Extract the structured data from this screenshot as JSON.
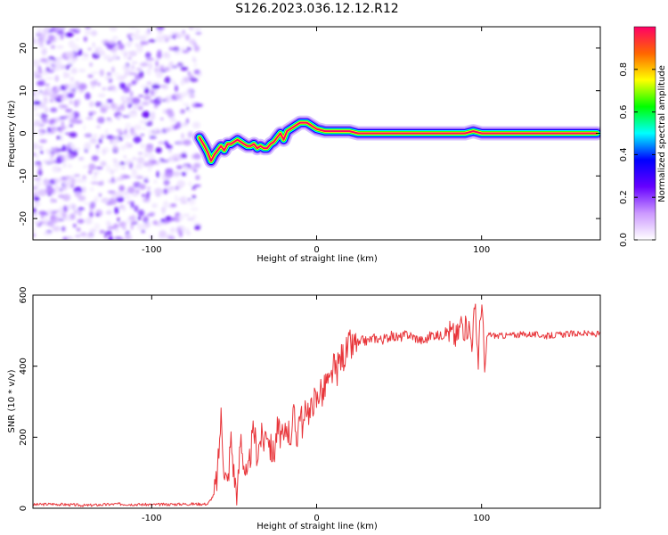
{
  "title": "S126.2023.036.12.12.R12",
  "chart_data": [
    {
      "type": "heatmap",
      "xlabel": "Height of straight line (km)",
      "ylabel": "Frequency (Hz)",
      "xlim": [
        -172,
        172
      ],
      "ylim": [
        -25,
        25
      ],
      "xticks": [
        -100,
        0,
        100
      ],
      "yticks": [
        -20,
        -10,
        0,
        10,
        20
      ],
      "noise_region_x": [
        -172,
        -71
      ],
      "ridge": {
        "x": [
          -71,
          -68,
          -66,
          -64,
          -62,
          -60,
          -58,
          -56,
          -54,
          -52,
          -50,
          -48,
          -46,
          -44,
          -42,
          -40,
          -38,
          -36,
          -34,
          -32,
          -30,
          -28,
          -26,
          -24,
          -22,
          -20,
          -18,
          -16,
          -14,
          -12,
          -10,
          -8,
          -6,
          -4,
          -2,
          0,
          5,
          10,
          15,
          20,
          25,
          30,
          40,
          50,
          60,
          70,
          75,
          80,
          85,
          90,
          95,
          100,
          110,
          120,
          130,
          140,
          150,
          160,
          170
        ],
        "y": [
          -1,
          -3,
          -4.5,
          -6.5,
          -5,
          -4,
          -3,
          -4,
          -2.5,
          -2.5,
          -2,
          -1.5,
          -2,
          -2.5,
          -3,
          -3,
          -2.5,
          -3.5,
          -3,
          -3.5,
          -3.5,
          -2.5,
          -2,
          -1,
          0,
          -1.5,
          0.5,
          1,
          1.5,
          2,
          2.5,
          2.5,
          2.5,
          2,
          1.5,
          1,
          0.5,
          0.5,
          0.5,
          0.5,
          0,
          0,
          0,
          0,
          0,
          0,
          0,
          0,
          0,
          0,
          0.5,
          0,
          0,
          0,
          0,
          0,
          0,
          0,
          0
        ]
      },
      "colorbar": {
        "label": "Normalized spectral amplitude",
        "ticks": [
          0.0,
          0.2,
          0.4,
          0.6,
          0.8
        ],
        "tick_labels": [
          "0.0",
          "0.2",
          "0.4",
          "0.6",
          "0.8"
        ],
        "colors": [
          "#ffffff",
          "#cc99ff",
          "#6600ff",
          "#0000ff",
          "#00ffff",
          "#00ff00",
          "#ffff00",
          "#ff6600",
          "#ff0066"
        ]
      }
    },
    {
      "type": "line",
      "xlabel": "Height of straight line (km)",
      "ylabel": "SNR (10 * v/v)",
      "xlim": [
        -172,
        172
      ],
      "ylim": [
        0,
        600
      ],
      "xticks": [
        -100,
        0,
        100
      ],
      "yticks": [
        0,
        200,
        400,
        600
      ],
      "color": "#e8353a",
      "x": [
        -172,
        -160,
        -140,
        -120,
        -100,
        -80,
        -66,
        -62,
        -60,
        -58,
        -56,
        -54,
        -52,
        -50,
        -48,
        -46,
        -44,
        -42,
        -40,
        -38,
        -36,
        -34,
        -32,
        -30,
        -28,
        -26,
        -24,
        -22,
        -20,
        -18,
        -16,
        -14,
        -12,
        -10,
        -8,
        -6,
        -4,
        -2,
        0,
        2,
        4,
        6,
        8,
        10,
        12,
        14,
        16,
        18,
        20,
        22,
        24,
        26,
        28,
        30,
        35,
        40,
        45,
        50,
        55,
        60,
        65,
        70,
        75,
        80,
        85,
        88,
        90,
        92,
        94,
        96,
        98,
        100,
        102,
        104,
        110,
        120,
        130,
        140,
        150,
        160,
        172
      ],
      "y": [
        10,
        12,
        8,
        12,
        10,
        12,
        12,
        40,
        100,
        260,
        110,
        60,
        200,
        90,
        40,
        210,
        120,
        70,
        160,
        220,
        150,
        200,
        190,
        230,
        170,
        150,
        220,
        210,
        180,
        240,
        200,
        260,
        200,
        280,
        220,
        300,
        260,
        310,
        300,
        340,
        320,
        360,
        340,
        400,
        380,
        420,
        430,
        440,
        460,
        450,
        470,
        460,
        475,
        470,
        480,
        475,
        485,
        480,
        490,
        480,
        470,
        490,
        485,
        500,
        480,
        530,
        500,
        520,
        470,
        560,
        420,
        600,
        380,
        490,
        485,
        488,
        490,
        485,
        490,
        492,
        490
      ]
    }
  ]
}
